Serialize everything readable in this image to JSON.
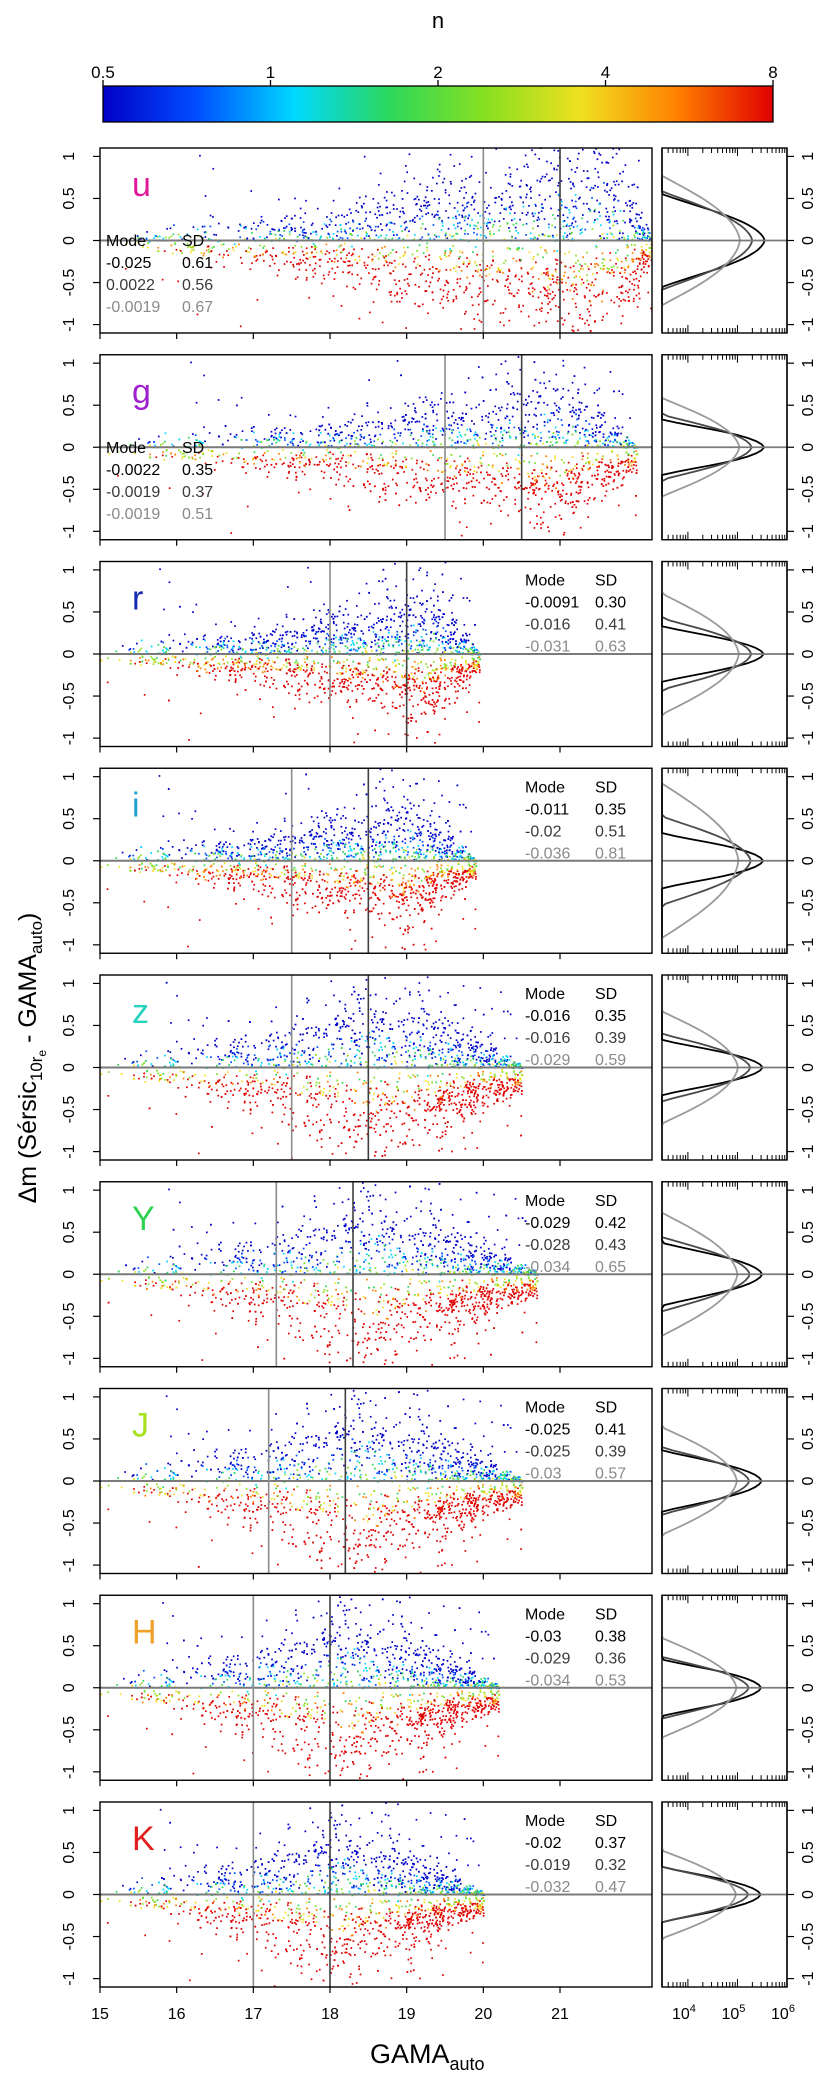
{
  "chart_data": {
    "type": "scatter",
    "figure": "Delta m versus GAMA_auto magnitude, colour-coded by Sersic index n, one panel per band",
    "colorbar": {
      "label": "n",
      "ticks": [
        "0.5",
        "1",
        "2",
        "4",
        "8"
      ],
      "scale": "log",
      "colors": [
        "#0000c8",
        "#0050ff",
        "#00d8ff",
        "#2dd85a",
        "#88e020",
        "#f0e020",
        "#ff8000",
        "#e00000"
      ]
    },
    "xlabel_main": "GAMA",
    "xlabel_sub": "auto",
    "xlim": [
      15,
      22.2
    ],
    "xticks": [
      15,
      16,
      17,
      18,
      19,
      20,
      21
    ],
    "xtick_labels": [
      "15",
      "16",
      "17",
      "18",
      "19",
      "20",
      "21"
    ],
    "ylabel": {
      "prefix": "Δm (Sérsic",
      "sub1": "10r",
      "subsub": "e",
      "mid": " - GAMA",
      "sub2": "auto",
      "suffix": ")"
    },
    "ylim": [
      -1.1,
      1.1
    ],
    "yticks": [
      -1,
      -0.5,
      0,
      0.5,
      1
    ],
    "ytick_labels": [
      "-1",
      "-0.5",
      "0",
      "0.5",
      "1"
    ],
    "histogram": {
      "xscale": "log",
      "xlim": [
        3000,
        1000000
      ],
      "tick_base": "10",
      "tick_exponents": [
        "4",
        "5",
        "6"
      ],
      "tick_values": [
        10000,
        100000,
        1000000
      ]
    },
    "stats_header": {
      "mode": "Mode",
      "sd": "SD"
    },
    "panels": [
      {
        "band": "u",
        "color": "#e0189a",
        "lines": [
          20,
          21
        ],
        "stats_pos": "left",
        "stats": [
          {
            "mode": "-0.025",
            "sd": "0.61"
          },
          {
            "mode": "0.0022",
            "sd": "0.56"
          },
          {
            "mode": "-0.0019",
            "sd": "0.67"
          }
        ],
        "cloud": {
          "start": 15.2,
          "peak": 21.6,
          "end": 22.2,
          "spread": 0.65,
          "redshift": -0.45,
          "blue": 0.7
        }
      },
      {
        "band": "g",
        "color": "#a020d0",
        "lines": [
          19.5,
          20.5
        ],
        "stats_pos": "left",
        "stats": [
          {
            "mode": "-0.0022",
            "sd": "0.35"
          },
          {
            "mode": "-0.0019",
            "sd": "0.37"
          },
          {
            "mode": "-0.0019",
            "sd": "0.51"
          }
        ],
        "cloud": {
          "start": 15.1,
          "peak": 21.0,
          "end": 22.0,
          "spread": 0.4,
          "redshift": -0.45,
          "blue": 0.35
        }
      },
      {
        "band": "r",
        "color": "#1428b4",
        "lines": [
          18,
          19
        ],
        "stats_pos": "right",
        "stats": [
          {
            "mode": "-0.0091",
            "sd": "0.30"
          },
          {
            "mode": "-0.016",
            "sd": "0.41"
          },
          {
            "mode": "-0.031",
            "sd": "0.63"
          }
        ],
        "cloud": {
          "start": 15.0,
          "peak": 19.3,
          "end": 19.95,
          "spread": 0.35,
          "redshift": -0.3,
          "blue": 0.2
        }
      },
      {
        "band": "i",
        "color": "#1ea0d2",
        "lines": [
          17.5,
          18.5
        ],
        "stats_pos": "right",
        "stats": [
          {
            "mode": "-0.011",
            "sd": "0.35"
          },
          {
            "mode": "-0.02",
            "sd": "0.51"
          },
          {
            "mode": "-0.036",
            "sd": "0.81"
          }
        ],
        "cloud": {
          "start": 15.0,
          "peak": 19.0,
          "end": 19.9,
          "spread": 0.35,
          "redshift": -0.3,
          "blue": 0.25
        }
      },
      {
        "band": "z",
        "color": "#28d2be",
        "lines": [
          17.5,
          18.5
        ],
        "stats_pos": "right",
        "stats": [
          {
            "mode": "-0.016",
            "sd": "0.35"
          },
          {
            "mode": "-0.016",
            "sd": "0.39"
          },
          {
            "mode": "-0.029",
            "sd": "0.59"
          }
        ],
        "cloud": {
          "start": 15.0,
          "peak": 18.8,
          "end": 20.5,
          "spread": 0.5,
          "redshift": -0.45,
          "blue": 0.55
        }
      },
      {
        "band": "Y",
        "color": "#2ed250",
        "lines": [
          17.3,
          18.3
        ],
        "stats_pos": "right",
        "stats": [
          {
            "mode": "-0.029",
            "sd": "0.42"
          },
          {
            "mode": "-0.028",
            "sd": "0.43"
          },
          {
            "mode": "-0.034",
            "sd": "0.65"
          }
        ],
        "cloud": {
          "start": 15.0,
          "peak": 18.6,
          "end": 20.7,
          "spread": 0.5,
          "redshift": -0.4,
          "blue": 0.5
        }
      },
      {
        "band": "J",
        "color": "#a8e01e",
        "lines": [
          17.2,
          18.2
        ],
        "stats_pos": "right",
        "stats": [
          {
            "mode": "-0.025",
            "sd": "0.41"
          },
          {
            "mode": "-0.025",
            "sd": "0.39"
          },
          {
            "mode": "-0.03",
            "sd": "0.57"
          }
        ],
        "cloud": {
          "start": 15.0,
          "peak": 18.5,
          "end": 20.5,
          "spread": 0.5,
          "redshift": -0.4,
          "blue": 0.5
        }
      },
      {
        "band": "H",
        "color": "#f0a028",
        "lines": [
          17,
          18
        ],
        "stats_pos": "right",
        "stats": [
          {
            "mode": "-0.03",
            "sd": "0.38"
          },
          {
            "mode": "-0.029",
            "sd": "0.36"
          },
          {
            "mode": "-0.034",
            "sd": "0.53"
          }
        ],
        "cloud": {
          "start": 15.0,
          "peak": 18.3,
          "end": 20.2,
          "spread": 0.5,
          "redshift": -0.4,
          "blue": 0.5
        }
      },
      {
        "band": "K",
        "color": "#e01e1e",
        "lines": [
          17,
          18
        ],
        "stats_pos": "right",
        "stats": [
          {
            "mode": "-0.02",
            "sd": "0.37"
          },
          {
            "mode": "-0.019",
            "sd": "0.32"
          },
          {
            "mode": "-0.032",
            "sd": "0.47"
          }
        ],
        "cloud": {
          "start": 15.0,
          "peak": 18.2,
          "end": 20.0,
          "spread": 0.45,
          "redshift": -0.35,
          "blue": 0.45
        }
      }
    ]
  }
}
